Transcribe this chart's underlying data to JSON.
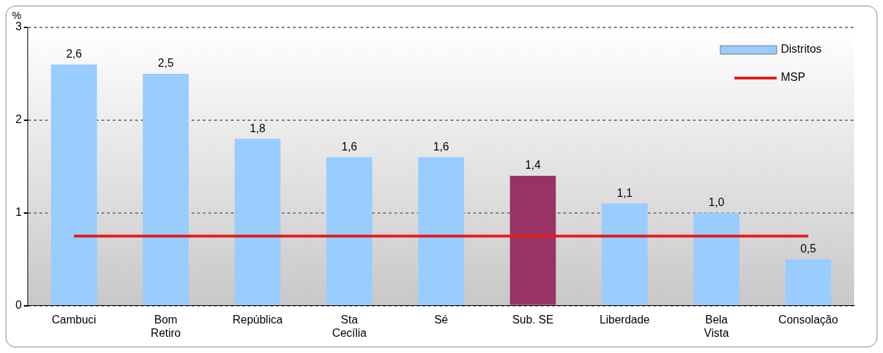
{
  "chart_data": {
    "type": "bar",
    "ylabel": "%",
    "categories": [
      "Cambuci",
      "Bom Retiro",
      "República",
      "Sta Cecília",
      "Sé",
      "Sub. SE",
      "Liberdade",
      "Bela Vista",
      "Consolação"
    ],
    "series": [
      {
        "name": "Distritos",
        "color": "#99ccff",
        "colors": [
          "#99ccff",
          "#99ccff",
          "#99ccff",
          "#99ccff",
          "#99ccff",
          "#993366",
          "#99ccff",
          "#99ccff",
          "#99ccff"
        ],
        "values": [
          2.6,
          2.5,
          1.8,
          1.6,
          1.6,
          1.4,
          1.1,
          1.0,
          0.5
        ],
        "value_labels": [
          "2,6",
          "2,5",
          "1,8",
          "1,6",
          "1,6",
          "1,4",
          "1,1",
          "1,0",
          "0,5"
        ]
      },
      {
        "name": "MSP",
        "type": "line",
        "color": "#e31c1c",
        "values": [
          0.75,
          0.75,
          0.75,
          0.75,
          0.75,
          0.75,
          0.75,
          0.75,
          0.75
        ]
      }
    ],
    "ylim": [
      0,
      3
    ],
    "yticks": [
      0,
      1,
      2,
      3
    ],
    "grid": "y",
    "legend": "top right",
    "marker": "none",
    "line_style": "solid"
  }
}
